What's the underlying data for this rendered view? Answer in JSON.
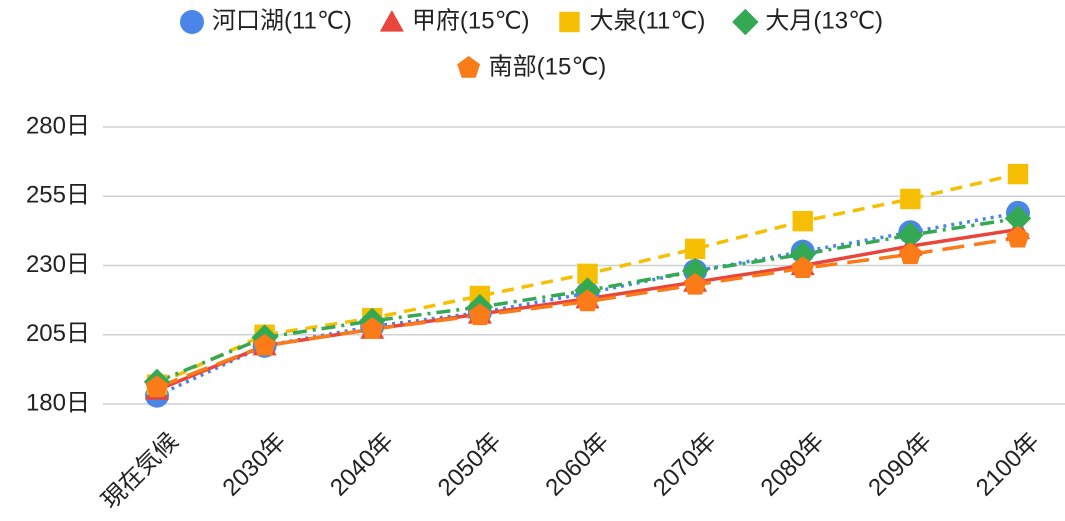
{
  "chart_data": {
    "type": "line",
    "categories": [
      "現在気候",
      "2030年",
      "2040年",
      "2050年",
      "2060年",
      "2070年",
      "2080年",
      "2090年",
      "2100年"
    ],
    "series": [
      {
        "name": "河口湖(11℃)",
        "color": "#4a86e8",
        "marker": "circle",
        "dash": "dotted",
        "values": [
          183,
          201,
          208,
          213,
          220,
          228,
          235,
          242,
          249
        ]
      },
      {
        "name": "甲府(15℃)",
        "color": "#e8453c",
        "marker": "triangle",
        "dash": "solid",
        "values": [
          185,
          201,
          207,
          212.5,
          218,
          224,
          230,
          237,
          243
        ]
      },
      {
        "name": "大泉(11℃)",
        "color": "#f6bf04",
        "marker": "square",
        "dash": "dashed",
        "values": [
          187,
          205,
          211,
          219,
          227,
          236,
          246,
          254,
          263
        ]
      },
      {
        "name": "大月(13℃)",
        "color": "#34a853",
        "marker": "diamond",
        "dash": "dashdot",
        "values": [
          188,
          204,
          210,
          215,
          221,
          228,
          234,
          241,
          247
        ]
      },
      {
        "name": "南部(15℃)",
        "color": "#fa7b17",
        "marker": "pentagon",
        "dash": "longdash",
        "values": [
          186,
          201,
          207,
          212,
          217,
          223,
          229,
          234,
          240
        ]
      }
    ],
    "ylim": [
      180,
      280
    ],
    "yticks": [
      {
        "value": 180,
        "label": "180日"
      },
      {
        "value": 205,
        "label": "205日"
      },
      {
        "value": 230,
        "label": "230日"
      },
      {
        "value": 255,
        "label": "255日"
      },
      {
        "value": 280,
        "label": "280日"
      }
    ],
    "grid": true,
    "legend": "top"
  }
}
